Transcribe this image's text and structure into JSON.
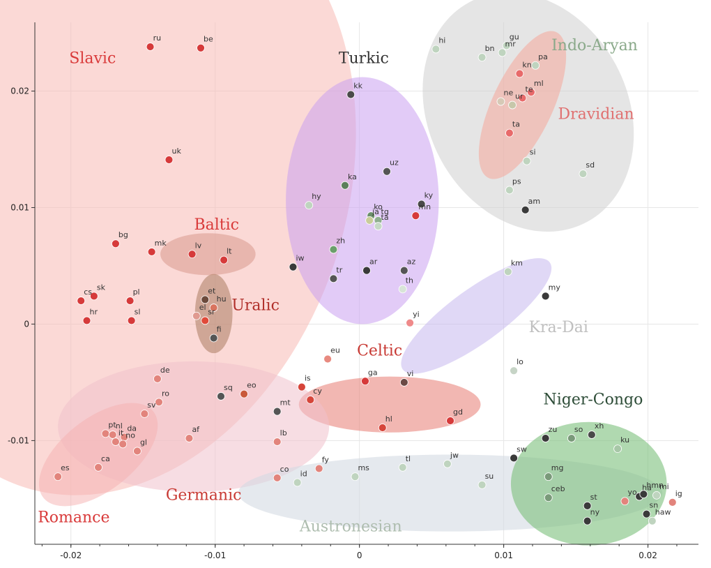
{
  "chart_data": {
    "type": "scatter",
    "xlim": [
      -0.0225,
      0.0235
    ],
    "ylim": [
      -0.0189,
      0.0259
    ],
    "grid": true,
    "x_ticks": [
      {
        "value": -0.02,
        "label": "-0.02"
      },
      {
        "value": -0.01,
        "label": "-0.01"
      },
      {
        "value": 0,
        "label": "0"
      },
      {
        "value": 0.01,
        "label": "0.01"
      },
      {
        "value": 0.02,
        "label": "0.02"
      }
    ],
    "y_ticks": [
      {
        "value": 0.02,
        "label": "0.02"
      },
      {
        "value": 0.01,
        "label": "0.01"
      },
      {
        "value": 0,
        "label": "0"
      },
      {
        "value": -0.01,
        "label": "-0.01"
      }
    ],
    "groups": [
      {
        "name": "Slavic",
        "color": "#d93a3a",
        "fill": "#f7b9b4",
        "opacity": 0.55,
        "ellipse": {
          "cx": -0.0166,
          "cy": 0.0115,
          "rx": 0.0157,
          "ry": 0.0268,
          "rotate": 18
        },
        "label_at": [
          -0.0185,
          0.0224
        ]
      },
      {
        "name": "Baltic",
        "color": "#d93a3a",
        "fill": "#d9998e",
        "opacity": 0.55,
        "ellipse": {
          "cx": -0.0105,
          "cy": 0.006,
          "rx": 0.0033,
          "ry": 0.0018,
          "rotate": 0
        },
        "label_at": [
          -0.0099,
          0.0081
        ]
      },
      {
        "name": "Uralic",
        "color": "#b02f2a",
        "fill": "#b3836b",
        "opacity": 0.6,
        "ellipse": {
          "cx": -0.0101,
          "cy": 0.0009,
          "rx": 0.0013,
          "ry": 0.0034,
          "rotate": 0
        },
        "label_at": [
          -0.0072,
          0.0012
        ]
      },
      {
        "name": "Turkic",
        "color": "#333333",
        "fill": "#cba0f0",
        "opacity": 0.55,
        "ellipse": {
          "cx": 0.0002,
          "cy": 0.0106,
          "rx": 0.0053,
          "ry": 0.0106,
          "rotate": 0
        },
        "label_at": [
          0.0003,
          0.0224
        ]
      },
      {
        "name": "Indo-Aryan",
        "color": "#8aa98a",
        "fill": "#cfcfcf",
        "opacity": 0.55,
        "ellipse": {
          "cx": 0.0117,
          "cy": 0.0182,
          "rx": 0.0069,
          "ry": 0.0107,
          "rotate": -28
        },
        "label_at": [
          0.0163,
          0.0235
        ]
      },
      {
        "name": "Dravidian",
        "color": "#e07070",
        "fill": "#f6a89a",
        "opacity": 0.55,
        "ellipse": {
          "cx": 0.0113,
          "cy": 0.0188,
          "rx": 0.0021,
          "ry": 0.0069,
          "rotate": 25
        },
        "label_at": [
          0.0164,
          0.0176
        ]
      },
      {
        "name": "Kra-Dai",
        "color": "#bfbfbf",
        "fill": "#c6b8ee",
        "opacity": 0.55,
        "ellipse": {
          "cx": 0.0081,
          "cy": 0.0007,
          "rx": 0.0063,
          "ry": 0.0023,
          "rotate": -36
        },
        "label_at": [
          0.0138,
          -0.0007
        ]
      },
      {
        "name": "Celtic",
        "color": "#c83a34",
        "fill": "#e87b72",
        "opacity": 0.55,
        "ellipse": {
          "cx": 0.0021,
          "cy": -0.0069,
          "rx": 0.0063,
          "ry": 0.0024,
          "rotate": 0
        },
        "label_at": [
          0.0014,
          -0.0027
        ]
      },
      {
        "name": "Germanic",
        "color": "#c83a34",
        "fill": "#f1c1cc",
        "opacity": 0.55,
        "ellipse": {
          "cx": -0.0115,
          "cy": -0.0088,
          "rx": 0.0094,
          "ry": 0.0056,
          "rotate": 0
        },
        "label_at": [
          -0.0108,
          -0.0151
        ]
      },
      {
        "name": "Romance",
        "color": "#d93a3a",
        "fill": "#f6b0b0",
        "opacity": 0.5,
        "ellipse": {
          "cx": -0.0181,
          "cy": -0.0112,
          "rx": 0.0025,
          "ry": 0.006,
          "rotate": 52
        },
        "label_at": [
          -0.0198,
          -0.017
        ]
      },
      {
        "name": "Austronesian",
        "color": "#aebdaf",
        "fill": "#d4dbe3",
        "opacity": 0.6,
        "ellipse": {
          "cx": 0.0063,
          "cy": -0.0145,
          "rx": 0.0147,
          "ry": 0.0033,
          "rotate": 0
        },
        "label_at": [
          -0.0006,
          -0.0178
        ]
      },
      {
        "name": "Niger-Congo",
        "color": "#2e4d38",
        "fill": "#7cbf7c",
        "opacity": 0.6,
        "ellipse": {
          "cx": 0.0159,
          "cy": -0.0137,
          "rx": 0.0054,
          "ry": 0.0053,
          "rotate": 0
        },
        "label_at": [
          0.0162,
          -0.0069
        ]
      }
    ],
    "points": [
      {
        "label": "ru",
        "x": -0.0145,
        "y": 0.0238,
        "color": "#d63a3a"
      },
      {
        "label": "be",
        "x": -0.011,
        "y": 0.0237,
        "color": "#d63a3a"
      },
      {
        "label": "uk",
        "x": -0.0132,
        "y": 0.0141,
        "color": "#d63a3a"
      },
      {
        "label": "bg",
        "x": -0.0169,
        "y": 0.0069,
        "color": "#d63a3a"
      },
      {
        "label": "mk",
        "x": -0.0144,
        "y": 0.0062,
        "color": "#d63a3a"
      },
      {
        "label": "cs",
        "x": -0.0193,
        "y": 0.002,
        "color": "#d63a3a"
      },
      {
        "label": "sk",
        "x": -0.0184,
        "y": 0.0024,
        "color": "#d63a3a"
      },
      {
        "label": "pl",
        "x": -0.0159,
        "y": 0.002,
        "color": "#d63a3a"
      },
      {
        "label": "hr",
        "x": -0.0189,
        "y": 0.0003,
        "color": "#d63a3a"
      },
      {
        "label": "sl",
        "x": -0.0158,
        "y": 0.0003,
        "color": "#d63a3a"
      },
      {
        "label": "lv",
        "x": -0.0116,
        "y": 0.006,
        "color": "#d63a3a"
      },
      {
        "label": "lt",
        "x": -0.0094,
        "y": 0.0055,
        "color": "#d63a3a"
      },
      {
        "label": "et",
        "x": -0.0107,
        "y": 0.0021,
        "color": "#6b4a3c"
      },
      {
        "label": "hu",
        "x": -0.0101,
        "y": 0.0014,
        "color": "#d9745f"
      },
      {
        "label": "el",
        "x": -0.0113,
        "y": 0.0007,
        "color": "#e09a90"
      },
      {
        "label": "sr",
        "x": -0.0107,
        "y": 0.0003,
        "color": "#e04a3a"
      },
      {
        "label": "fi",
        "x": -0.0101,
        "y": -0.0012,
        "color": "#555555"
      },
      {
        "label": "hi",
        "x": 0.0053,
        "y": 0.0236,
        "color": "#bfd4bf"
      },
      {
        "label": "bn",
        "x": 0.0085,
        "y": 0.0229,
        "color": "#bfd4bf"
      },
      {
        "label": "gu",
        "x": 0.0102,
        "y": 0.0239,
        "color": "#bfd4bf"
      },
      {
        "label": "mr",
        "x": 0.0099,
        "y": 0.0233,
        "color": "#bfd4bf"
      },
      {
        "label": "pa",
        "x": 0.0122,
        "y": 0.0222,
        "color": "#bfd4bf"
      },
      {
        "label": "kn",
        "x": 0.0111,
        "y": 0.0215,
        "color": "#e86a6a"
      },
      {
        "label": "ne",
        "x": 0.0098,
        "y": 0.0191,
        "color": "#d6c9b6"
      },
      {
        "label": "ur",
        "x": 0.0106,
        "y": 0.0188,
        "color": "#c7c7aa"
      },
      {
        "label": "te",
        "x": 0.0113,
        "y": 0.0194,
        "color": "#e86a6a"
      },
      {
        "label": "ml",
        "x": 0.0119,
        "y": 0.0199,
        "color": "#e86a6a"
      },
      {
        "label": "ta",
        "x": 0.0104,
        "y": 0.0164,
        "color": "#e86a6a"
      },
      {
        "label": "si",
        "x": 0.0116,
        "y": 0.014,
        "color": "#bfd4bf"
      },
      {
        "label": "sd",
        "x": 0.0155,
        "y": 0.0129,
        "color": "#bfd4bf"
      },
      {
        "label": "ps",
        "x": 0.0104,
        "y": 0.0115,
        "color": "#bfd4bf"
      },
      {
        "label": "am",
        "x": 0.0115,
        "y": 0.0098,
        "color": "#3a3a3a"
      },
      {
        "label": "km",
        "x": 0.0103,
        "y": 0.0045,
        "color": "#bfd4bf"
      },
      {
        "label": "my",
        "x": 0.0129,
        "y": 0.0024,
        "color": "#3a3a3a"
      },
      {
        "label": "kk",
        "x": -0.0006,
        "y": 0.0197,
        "color": "#4a4a4a"
      },
      {
        "label": "uz",
        "x": 0.0019,
        "y": 0.0131,
        "color": "#555555"
      },
      {
        "label": "ka",
        "x": -0.001,
        "y": 0.0119,
        "color": "#5b7f5b"
      },
      {
        "label": "hy",
        "x": -0.0035,
        "y": 0.0102,
        "color": "#bfd4bf"
      },
      {
        "label": "ky",
        "x": 0.0043,
        "y": 0.0103,
        "color": "#4a4a4a"
      },
      {
        "label": "mn",
        "x": 0.0039,
        "y": 0.0093,
        "color": "#d63a3a"
      },
      {
        "label": "ko",
        "x": 0.0008,
        "y": 0.0093,
        "color": "#6b8f6b"
      },
      {
        "label": "ja",
        "x": 0.0007,
        "y": 0.0089,
        "color": "#c9cc9a"
      },
      {
        "label": "tg",
        "x": 0.0013,
        "y": 0.0089,
        "color": "#8faf8f"
      },
      {
        "label": "ta",
        "x": 0.0013,
        "y": 0.0084,
        "color": "#c6d8c6"
      },
      {
        "label": "zh",
        "x": -0.0018,
        "y": 0.0064,
        "color": "#6b9f6b"
      },
      {
        "label": "iw",
        "x": -0.0046,
        "y": 0.0049,
        "color": "#3a3a3a"
      },
      {
        "label": "ar",
        "x": 0.0005,
        "y": 0.0046,
        "color": "#3a3a3a"
      },
      {
        "label": "az",
        "x": 0.0031,
        "y": 0.0046,
        "color": "#555555"
      },
      {
        "label": "tr",
        "x": -0.0018,
        "y": 0.0039,
        "color": "#555555"
      },
      {
        "label": "th",
        "x": 0.003,
        "y": 0.003,
        "color": "#d8e4d8"
      },
      {
        "label": "yi",
        "x": 0.0035,
        "y": 0.0001,
        "color": "#ef8a8a"
      },
      {
        "label": "lo",
        "x": 0.0107,
        "y": -0.004,
        "color": "#c6d4c6"
      },
      {
        "label": "eu",
        "x": -0.0022,
        "y": -0.003,
        "color": "#e88a80"
      },
      {
        "label": "is",
        "x": -0.004,
        "y": -0.0054,
        "color": "#d6453a"
      },
      {
        "label": "cy",
        "x": -0.0034,
        "y": -0.0065,
        "color": "#d6453a"
      },
      {
        "label": "ga",
        "x": 0.0004,
        "y": -0.0049,
        "color": "#d63a3a"
      },
      {
        "label": "vi",
        "x": 0.0031,
        "y": -0.005,
        "color": "#6b4a45"
      },
      {
        "label": "hl",
        "x": 0.0016,
        "y": -0.0089,
        "color": "#d6453a"
      },
      {
        "label": "gd",
        "x": 0.0063,
        "y": -0.0083,
        "color": "#d63a3a"
      },
      {
        "label": "de",
        "x": -0.014,
        "y": -0.0047,
        "color": "#e2847c"
      },
      {
        "label": "ro",
        "x": -0.0139,
        "y": -0.0067,
        "color": "#e2847c"
      },
      {
        "label": "sv",
        "x": -0.0149,
        "y": -0.0077,
        "color": "#e2847c"
      },
      {
        "label": "sq",
        "x": -0.0096,
        "y": -0.0062,
        "color": "#555555"
      },
      {
        "label": "eo",
        "x": -0.008,
        "y": -0.006,
        "color": "#c95a3a"
      },
      {
        "label": "mt",
        "x": -0.0057,
        "y": -0.0075,
        "color": "#555555"
      },
      {
        "label": "af",
        "x": -0.0118,
        "y": -0.0098,
        "color": "#e2847c"
      },
      {
        "label": "lb",
        "x": -0.0057,
        "y": -0.0101,
        "color": "#e2847c"
      },
      {
        "label": "pt",
        "x": -0.0176,
        "y": -0.0094,
        "color": "#e2847c"
      },
      {
        "label": "nl",
        "x": -0.0171,
        "y": -0.0095,
        "color": "#e2847c"
      },
      {
        "label": "da",
        "x": -0.0163,
        "y": -0.0097,
        "color": "#e2847c"
      },
      {
        "label": "it",
        "x": -0.0169,
        "y": -0.0101,
        "color": "#e2847c"
      },
      {
        "label": "no",
        "x": -0.0164,
        "y": -0.0103,
        "color": "#e2847c"
      },
      {
        "label": "gl",
        "x": -0.0154,
        "y": -0.0109,
        "color": "#e2847c"
      },
      {
        "label": "ca",
        "x": -0.0181,
        "y": -0.0123,
        "color": "#e2847c"
      },
      {
        "label": "es",
        "x": -0.0209,
        "y": -0.0131,
        "color": "#e2847c"
      },
      {
        "label": "co",
        "x": -0.0057,
        "y": -0.0132,
        "color": "#e2847c"
      },
      {
        "label": "id",
        "x": -0.0043,
        "y": -0.0136,
        "color": "#bfd4bf"
      },
      {
        "label": "fy",
        "x": -0.0028,
        "y": -0.0124,
        "color": "#e2847c"
      },
      {
        "label": "ms",
        "x": -0.0003,
        "y": -0.0131,
        "color": "#bfd4bf"
      },
      {
        "label": "tl",
        "x": 0.003,
        "y": -0.0123,
        "color": "#bfd4bf"
      },
      {
        "label": "jw",
        "x": 0.0061,
        "y": -0.012,
        "color": "#bfd4bf"
      },
      {
        "label": "su",
        "x": 0.0085,
        "y": -0.0138,
        "color": "#bfd4bf"
      },
      {
        "label": "zu",
        "x": 0.0129,
        "y": -0.0098,
        "color": "#3a3a3a"
      },
      {
        "label": "so",
        "x": 0.0147,
        "y": -0.0098,
        "color": "#7a9a7a"
      },
      {
        "label": "xh",
        "x": 0.0161,
        "y": -0.0095,
        "color": "#4a4a4a"
      },
      {
        "label": "ku",
        "x": 0.0179,
        "y": -0.0107,
        "color": "#a7c7a7"
      },
      {
        "label": "sw",
        "x": 0.0107,
        "y": -0.0115,
        "color": "#3a3a3a"
      },
      {
        "label": "mg",
        "x": 0.0131,
        "y": -0.0131,
        "color": "#7a9a7a"
      },
      {
        "label": "ceb",
        "x": 0.0131,
        "y": -0.0149,
        "color": "#7a9a7a"
      },
      {
        "label": "st",
        "x": 0.0158,
        "y": -0.0156,
        "color": "#3a3a3a"
      },
      {
        "label": "ny",
        "x": 0.0158,
        "y": -0.0169,
        "color": "#3a3a3a"
      },
      {
        "label": "yo",
        "x": 0.0184,
        "y": -0.0152,
        "color": "#e2847c"
      },
      {
        "label": "ha",
        "x": 0.0194,
        "y": -0.0148,
        "color": "#3a3a3a"
      },
      {
        "label": "hmn",
        "x": 0.0197,
        "y": -0.0146,
        "color": "#3a3a3a"
      },
      {
        "label": "mi",
        "x": 0.0206,
        "y": -0.0147,
        "color": "#bfd4bf"
      },
      {
        "label": "ig",
        "x": 0.0217,
        "y": -0.0153,
        "color": "#e2847c"
      },
      {
        "label": "sn",
        "x": 0.0199,
        "y": -0.0163,
        "color": "#3a3a3a"
      },
      {
        "label": "haw",
        "x": 0.0203,
        "y": -0.0169,
        "color": "#bfd4bf"
      }
    ]
  }
}
